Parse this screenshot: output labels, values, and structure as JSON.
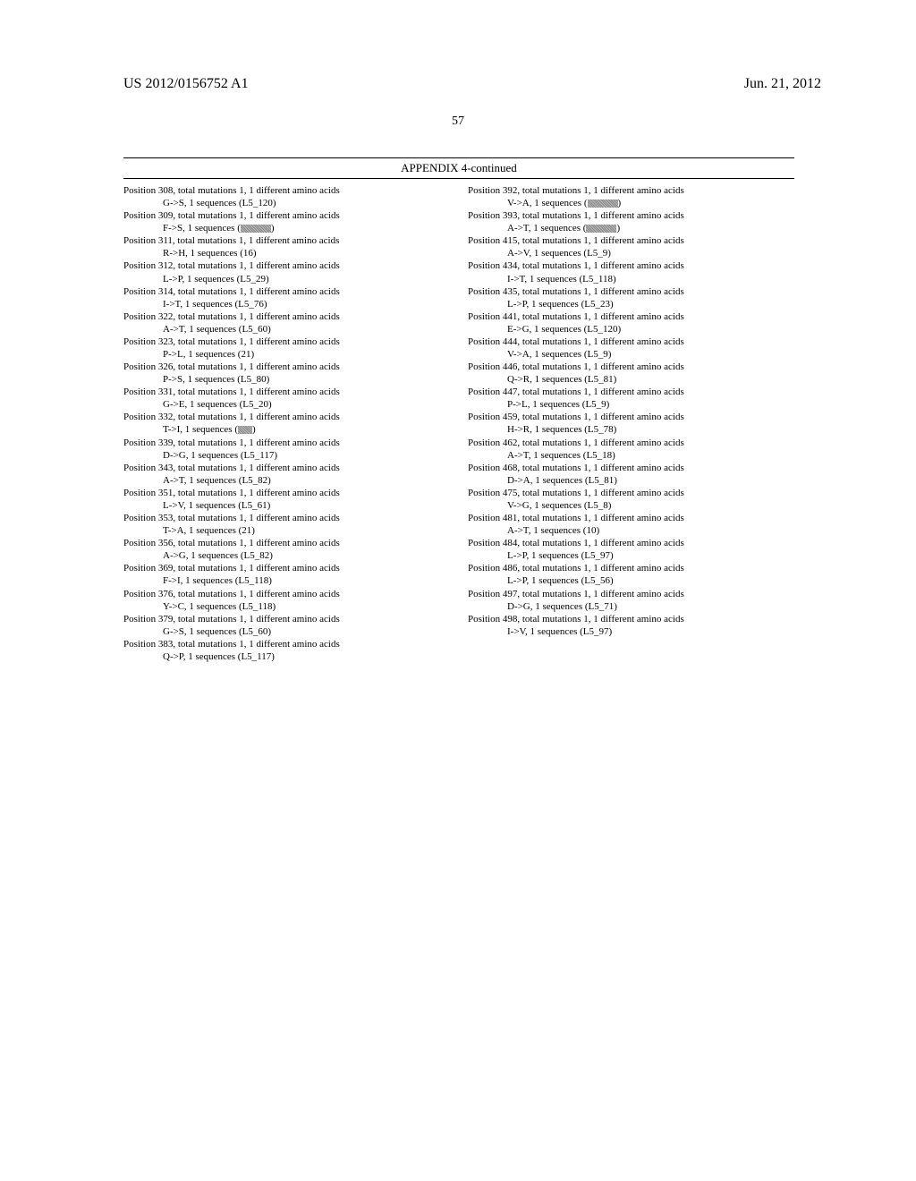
{
  "header": {
    "publication_number": "US 2012/0156752 A1",
    "publication_date": "Jun. 21, 2012"
  },
  "page_number": "57",
  "appendix_title": "APPENDIX 4-continued",
  "entries": [
    {
      "r1": "Position 308, total mutations 1, 1 different amino acids",
      "r2": "G->S, 1 sequences (L5_120)"
    },
    {
      "r1": "Position 309, total mutations 1, 1 different amino acids",
      "r2": "F->S, 1 sequences (",
      "redact": "lg",
      "r2b": ")"
    },
    {
      "r1": "Position 311, total mutations 1, 1 different amino acids",
      "r2": "R->H, 1 sequences (16)"
    },
    {
      "r1": "Position 312, total mutations 1, 1 different amino acids",
      "r2": "L->P, 1 sequences (L5_29)"
    },
    {
      "r1": "Position 314, total mutations 1, 1 different amino acids",
      "r2": "I->T, 1 sequences (L5_76)"
    },
    {
      "r1": "Position 322, total mutations 1, 1 different amino acids",
      "r2": "A->T, 1 sequences (L5_60)"
    },
    {
      "r1": "Position 323, total mutations 1, 1 different amino acids",
      "r2": "P->L, 1 sequences (21)"
    },
    {
      "r1": "Position 326, total mutations 1, 1 different amino acids",
      "r2": "P->S, 1 sequences (L5_80)"
    },
    {
      "r1": "Position 331, total mutations 1, 1 different amino acids",
      "r2": "G->E, 1 sequences (L5_20)"
    },
    {
      "r1": "Position 332, total mutations 1, 1 different amino acids",
      "r2": "T->I, 1 sequences (",
      "redact": "sm",
      "r2b": ")"
    },
    {
      "r1": "Position 339, total mutations 1, 1 different amino acids",
      "r2": "D->G, 1 sequences (L5_117)"
    },
    {
      "r1": "Position 343, total mutations 1, 1 different amino acids",
      "r2": "A->T, 1 sequences (L5_82)"
    },
    {
      "r1": "Position 351, total mutations 1, 1 different amino acids",
      "r2": "L->V, 1 sequences (L5_61)"
    },
    {
      "r1": "Position 353, total mutations 1, 1 different amino acids",
      "r2": "T->A, 1 sequences (21)"
    },
    {
      "r1": "Position 356, total mutations 1, 1 different amino acids",
      "r2": "A->G, 1 sequences (L5_82)"
    },
    {
      "r1": "Position 369, total mutations 1, 1 different amino acids",
      "r2": "F->I, 1 sequences (L5_118)"
    },
    {
      "r1": "Position 376, total mutations 1, 1 different amino acids",
      "r2": "Y->C, 1 sequences (L5_118)"
    },
    {
      "r1": "Position 379, total mutations 1, 1 different amino acids",
      "r2": "G->S, 1 sequences (L5_60)"
    },
    {
      "r1": "Position 383, total mutations 1, 1 different amino acids",
      "r2": "Q->P, 1 sequences (L5_117)"
    },
    {
      "r1": "Position 392, total mutations 1, 1 different amino acids",
      "r2": "V->A, 1 sequences (",
      "redact": "lg",
      "r2b": ")"
    },
    {
      "r1": "Position 393, total mutations 1, 1 different amino acids",
      "r2": "A->T, 1 sequences (",
      "redact": "lg",
      "r2b": ")"
    },
    {
      "r1": "Position 415, total mutations 1, 1 different amino acids",
      "r2": "A->V, 1 sequences (L5_9)"
    },
    {
      "r1": "Position 434, total mutations 1, 1 different amino acids",
      "r2": "I->T, 1 sequences (L5_118)"
    },
    {
      "r1": "Position 435, total mutations 1, 1 different amino acids",
      "r2": "L->P, 1 sequences (L5_23)"
    },
    {
      "r1": "Position 441, total mutations 1, 1 different amino acids",
      "r2": "E->G, 1 sequences (L5_120)"
    },
    {
      "r1": "Position 444, total mutations 1, 1 different amino acids",
      "r2": "V->A, 1 sequences (L5_9)"
    },
    {
      "r1": "Position 446, total mutations 1, 1 different amino acids",
      "r2": "Q->R, 1 sequences (L5_81)"
    },
    {
      "r1": "Position 447, total mutations 1, 1 different amino acids",
      "r2": "P->L, 1 sequences (L5_9)"
    },
    {
      "r1": "Position 459, total mutations 1, 1 different amino acids",
      "r2": "H->R, 1 sequences (L5_78)"
    },
    {
      "r1": "Position 462, total mutations 1, 1 different amino acids",
      "r2": "A->T, 1 sequences (L5_18)"
    },
    {
      "r1": "Position 468, total mutations 1, 1 different amino acids",
      "r2": "D->A, 1 sequences (L5_81)"
    },
    {
      "r1": "Position 475, total mutations 1, 1 different amino acids",
      "r2": "V->G, 1 sequences (L5_8)"
    },
    {
      "r1": "Position 481, total mutations 1, 1 different amino acids",
      "r2": "A->T, 1 sequences (10)"
    },
    {
      "r1": "Position 484, total mutations 1, 1 different amino acids",
      "r2": "L->P, 1 sequences (L5_97)"
    },
    {
      "r1": "Position 486, total mutations 1, 1 different amino acids",
      "r2": "L->P, 1 sequences (L5_56)"
    },
    {
      "r1": "Position 497, total mutations 1, 1 different amino acids",
      "r2": "D->G, 1 sequences (L5_71)"
    },
    {
      "r1": "Position 498, total mutations 1, 1 different amino acids",
      "r2": "I->V, 1 sequences (L5_97)"
    }
  ]
}
